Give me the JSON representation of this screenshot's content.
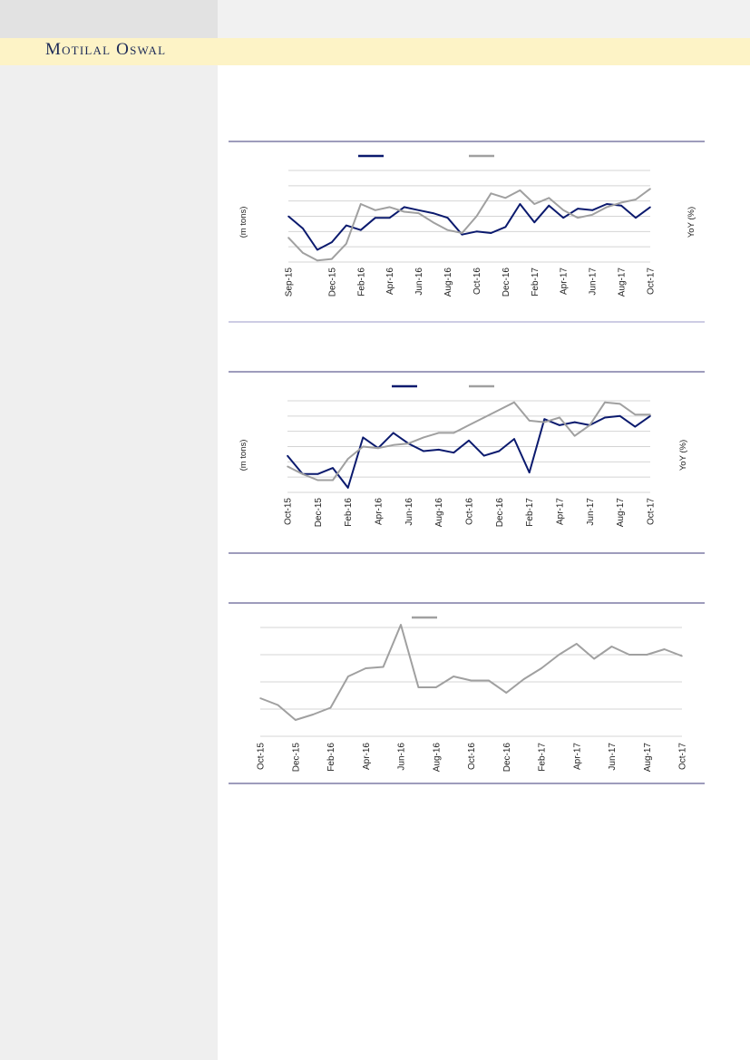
{
  "brand": {
    "name": "Motilal Oswal"
  },
  "colors": {
    "navy": "#0b1a6e",
    "gray": "#a0a0a0",
    "brand_text": "#1c2a57",
    "brand_bar": "#fdf3c6"
  },
  "chart_data": [
    {
      "type": "line",
      "y_left_label": "(m tons)",
      "y_right_label": "YoY (%)",
      "categories": [
        "Sep-15",
        "Oct-15",
        "Nov-15",
        "Dec-15",
        "Jan-16",
        "Feb-16",
        "Mar-16",
        "Apr-16",
        "May-16",
        "Jun-16",
        "Jul-16",
        "Aug-16",
        "Sep-16",
        "Oct-16",
        "Nov-16",
        "Dec-16",
        "Jan-17",
        "Feb-17",
        "Mar-17",
        "Apr-17",
        "May-17",
        "Jun-17",
        "Jul-17",
        "Aug-17",
        "Sep-17",
        "Oct-17"
      ],
      "tick_labels": [
        "Sep-15",
        "Dec-15",
        "Feb-16",
        "Apr-16",
        "Jun-16",
        "Aug-16",
        "Oct-16",
        "Dec-16",
        "Feb-17",
        "Apr-17",
        "Jun-17",
        "Aug-17",
        "Oct-17"
      ],
      "tick_index": [
        0,
        3,
        5,
        7,
        9,
        11,
        13,
        15,
        17,
        19,
        21,
        23,
        25
      ],
      "ylim": [
        0,
        6
      ],
      "grid": true,
      "series": [
        {
          "color": "#0b1a6e",
          "values": [
            3.0,
            2.2,
            0.8,
            1.3,
            2.4,
            2.1,
            2.9,
            2.9,
            3.6,
            3.4,
            3.2,
            2.9,
            1.8,
            2.0,
            1.9,
            2.3,
            3.8,
            2.6,
            3.7,
            2.9,
            3.5,
            3.4,
            3.8,
            3.7,
            2.9,
            3.6
          ]
        },
        {
          "color": "#a0a0a0",
          "values": [
            1.6,
            0.6,
            0.1,
            0.2,
            1.2,
            3.8,
            3.4,
            3.6,
            3.3,
            3.2,
            2.6,
            2.1,
            1.9,
            3.0,
            4.5,
            4.2,
            4.7,
            3.8,
            4.2,
            3.4,
            2.9,
            3.1,
            3.6,
            3.9,
            4.1,
            4.8
          ]
        }
      ]
    },
    {
      "type": "line",
      "y_left_label": "(m tons)",
      "y_right_label": "YoY (%)",
      "categories": [
        "Oct-15",
        "Nov-15",
        "Dec-15",
        "Jan-16",
        "Feb-16",
        "Mar-16",
        "Apr-16",
        "May-16",
        "Jun-16",
        "Jul-16",
        "Aug-16",
        "Sep-16",
        "Oct-16",
        "Nov-16",
        "Dec-16",
        "Jan-17",
        "Feb-17",
        "Mar-17",
        "Apr-17",
        "May-17",
        "Jun-17",
        "Jul-17",
        "Aug-17",
        "Sep-17",
        "Oct-17"
      ],
      "tick_labels": [
        "Oct-15",
        "Dec-15",
        "Feb-16",
        "Apr-16",
        "Jun-16",
        "Aug-16",
        "Oct-16",
        "Dec-16",
        "Feb-17",
        "Apr-17",
        "Jun-17",
        "Aug-17",
        "Oct-17"
      ],
      "tick_index": [
        0,
        2,
        4,
        6,
        8,
        10,
        12,
        14,
        16,
        18,
        20,
        22,
        24
      ],
      "ylim": [
        0,
        6
      ],
      "grid": true,
      "series": [
        {
          "color": "#0b1a6e",
          "values": [
            2.4,
            1.2,
            1.2,
            1.6,
            0.3,
            3.6,
            2.9,
            3.9,
            3.2,
            2.7,
            2.8,
            2.6,
            3.4,
            2.4,
            2.7,
            3.5,
            1.3,
            4.8,
            4.4,
            4.6,
            4.4,
            4.9,
            5.0,
            4.3,
            5.0
          ]
        },
        {
          "color": "#a0a0a0",
          "values": [
            1.7,
            1.2,
            0.8,
            0.8,
            2.2,
            3.0,
            2.9,
            3.1,
            3.2,
            3.6,
            3.9,
            3.9,
            4.4,
            4.9,
            5.4,
            5.9,
            4.7,
            4.6,
            4.9,
            3.7,
            4.4,
            5.9,
            5.8,
            5.1,
            5.1
          ]
        }
      ]
    },
    {
      "type": "line",
      "categories": [
        "Oct-15",
        "Nov-15",
        "Dec-15",
        "Jan-16",
        "Feb-16",
        "Mar-16",
        "Apr-16",
        "May-16",
        "Jun-16",
        "Jul-16",
        "Aug-16",
        "Sep-16",
        "Oct-16",
        "Nov-16",
        "Dec-16",
        "Jan-17",
        "Feb-17",
        "Mar-17",
        "Apr-17",
        "May-17",
        "Jun-17",
        "Jul-17",
        "Aug-17",
        "Sep-17",
        "Oct-17"
      ],
      "tick_labels": [
        "Oct-15",
        "Dec-15",
        "Feb-16",
        "Apr-16",
        "Jun-16",
        "Aug-16",
        "Oct-16",
        "Dec-16",
        "Feb-17",
        "Apr-17",
        "Jun-17",
        "Aug-17",
        "Oct-17"
      ],
      "tick_index": [
        0,
        2,
        4,
        6,
        8,
        10,
        12,
        14,
        16,
        18,
        20,
        22,
        24
      ],
      "ylim": [
        0,
        4
      ],
      "grid": true,
      "series": [
        {
          "color": "#a0a0a0",
          "values": [
            1.4,
            1.15,
            0.6,
            0.8,
            1.05,
            2.2,
            2.5,
            2.55,
            4.1,
            1.8,
            1.8,
            2.2,
            2.05,
            2.05,
            1.6,
            2.1,
            2.5,
            3.0,
            3.4,
            2.85,
            3.3,
            3.0,
            3.0,
            3.2,
            2.95
          ]
        }
      ]
    }
  ]
}
